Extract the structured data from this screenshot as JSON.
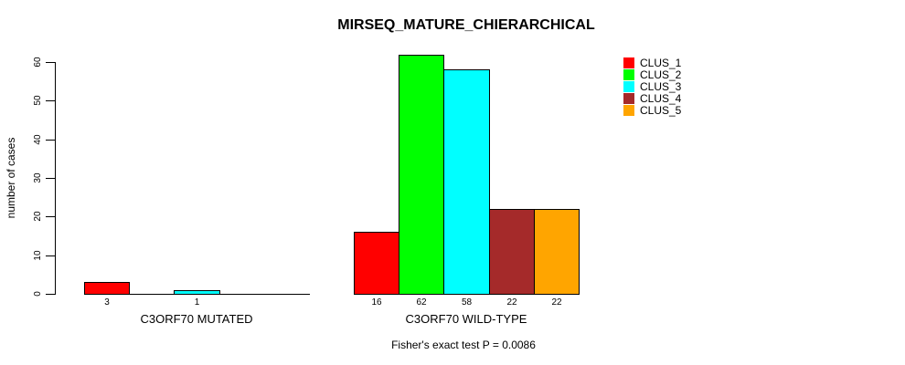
{
  "chart_data": {
    "type": "bar",
    "title": "MIRSEQ_MATURE_CHIERARCHICAL",
    "ylabel": "number of cases",
    "xlabel": "",
    "ylim": [
      0,
      60
    ],
    "yticks": [
      0,
      10,
      20,
      30,
      40,
      50,
      60
    ],
    "grid": false,
    "background_color": "#FFFFFF",
    "axis_color": "#000000",
    "series_colors": [
      "#FF0000",
      "#00FF00",
      "#00FFFF",
      "#A52A2A",
      "#FFA500"
    ],
    "legend": {
      "position": "top-right",
      "border": "none",
      "items": [
        {
          "label": "CLUS_1"
        },
        {
          "label": "CLUS_2"
        },
        {
          "label": "CLUS_3"
        },
        {
          "label": "CLUS_4"
        },
        {
          "label": "CLUS_5"
        }
      ]
    },
    "categories": [
      "CLUS_1",
      "CLUS_2",
      "CLUS_3",
      "CLUS_4",
      "CLUS_5"
    ],
    "groups": [
      {
        "label": "C3ORF70 MUTATED",
        "values": [
          3,
          0,
          1,
          0,
          0
        ],
        "bar_labels": [
          "3",
          "",
          "1",
          "",
          ""
        ]
      },
      {
        "label": "C3ORF70 WILD-TYPE",
        "values": [
          16,
          62,
          58,
          22,
          22
        ],
        "bar_labels": [
          "16",
          "62",
          "58",
          "22",
          "22"
        ]
      }
    ],
    "footnote": "Fisher's exact test P = 0.0086"
  }
}
